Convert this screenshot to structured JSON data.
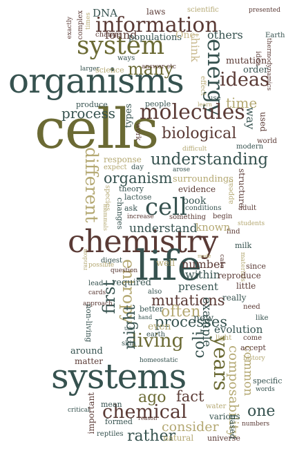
{
  "colors": {
    "dark_slate": "#36524f",
    "olive": "#6b6a34",
    "brown": "#5a3a35",
    "khaki": "#b4a872",
    "tan": "#c8b88c",
    "light": "#d2c7a0",
    "background": "#ffffff"
  },
  "words": {
    "cells": "cells",
    "organisms": "organisms",
    "chemistry": "chemistry",
    "systems": "systems",
    "life": "life",
    "system": "system",
    "information": "information",
    "energy": "energy",
    "molecules": "molecules",
    "understanding": "understanding",
    "ideas": "ideas",
    "many": "many",
    "time": "time",
    "biological": "biological",
    "different": "different",
    "cell": "cell",
    "organism": "organism",
    "living": "living",
    "chemical": "chemical",
    "years": "years",
    "entropy": "entropy",
    "mutations": "mutations",
    "first": "first",
    "might": "might",
    "often": "often",
    "processes": "processes",
    "process": "process",
    "ago": "ago",
    "fact": "fact",
    "consider": "consider",
    "rather": "rather",
    "one": "one",
    "coli": "coli",
    "composability": "composability",
    "common": "common",
    "example": "example",
    "understand": "understand",
    "number": "number",
    "within": "within",
    "evolution": "evolution",
    "mutation": "mutation",
    "order": "order",
    "others": "others",
    "found": "found",
    "populations": "populations",
    "dna": "DNA",
    "laws": "laws",
    "scientific": "scientific",
    "presented": "presented",
    "earth": "Earth",
    "thermodynamics": "thermodynamics",
    "one2": "One",
    "think": "think",
    "change": "change",
    "complex": "complex",
    "exactly": "exactly",
    "times": "times",
    "answer_etc": "answer etc",
    "larger": "larger",
    "science": "science",
    "ways": "ways",
    "effect": "effect",
    "produce": "produce",
    "people": "people",
    "used": "used",
    "use": "use",
    "learn": "learn",
    "types": "types",
    "work": "work",
    "way": "way",
    "idea": "idea",
    "difficult": "difficult",
    "modern": "modern",
    "world": "world",
    "response": "response",
    "expect": "expect",
    "day": "day",
    "arose": "arose",
    "surroundings": "surroundings",
    "structure": "structure",
    "theory": "theory",
    "evidence": "evidence",
    "lactose": "lactose",
    "appear": "appear",
    "book": "book",
    "species": "species",
    "changes": "changes",
    "ask": "ask",
    "increase": "increase",
    "something": "something",
    "conditions": "conditions",
    "adult": "adult",
    "begin": "begin",
    "find": "find",
    "students": "students",
    "known": "known",
    "mammals": "mammals",
    "made": "made",
    "milk": "milk",
    "digest": "digest",
    "materials": "materials",
    "question": "question",
    "possible": "possible",
    "random": "random",
    "well": "well",
    "case": "case",
    "since": "since",
    "reproduce": "reproduce",
    "little": "little",
    "lead": "lead",
    "required": "required",
    "present": "present",
    "cards": "cards",
    "also": "also",
    "really": "really",
    "approach": "approach",
    "better": "better",
    "need": "need",
    "like": "like",
    "hand": "hand",
    "new": "new",
    "non_living": "non-living",
    "even": "even",
    "light": "light",
    "come": "come",
    "accept": "accept",
    "take": "take",
    "earth2": "earth",
    "history": "history",
    "skin": "skin",
    "around": "around",
    "matter": "matter",
    "homeostatic": "homeostatic",
    "words": "words",
    "specific": "specific",
    "mean": "mean",
    "water": "water",
    "various": "various",
    "numbers": "numbers",
    "critical": "critical",
    "formed": "formed",
    "reason": "reason",
    "reptiles": "reptiles",
    "natural": "natural",
    "universe": "universe",
    "based": "based",
    "important": "important"
  }
}
